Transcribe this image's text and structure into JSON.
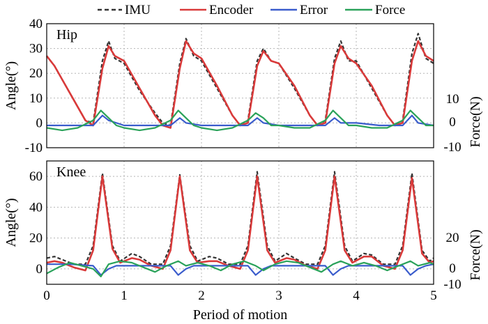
{
  "chart_data": {
    "type": "line",
    "legend": {
      "placement": "top",
      "entries": [
        {
          "name": "IMU",
          "color": "#333333",
          "style": "dashed"
        },
        {
          "name": "Encoder",
          "color": "#d93a3a",
          "style": "solid"
        },
        {
          "name": "Error",
          "color": "#3a5ccc",
          "style": "solid"
        },
        {
          "name": "Force",
          "color": "#2aa25a",
          "style": "solid"
        }
      ]
    },
    "xlabel": "Period of motion",
    "xlim": [
      0,
      5
    ],
    "xticks": [
      "0",
      "1",
      "2",
      "3",
      "4",
      "5"
    ],
    "grid": true,
    "panels": [
      {
        "title": "Hip",
        "ylabel": "Angle(°)",
        "ylim": [
          -10,
          40
        ],
        "yticks": [
          "-10",
          "0",
          "10",
          "20",
          "30",
          "40"
        ],
        "ylabel_right": "Force(N)",
        "yticks_right": [
          "10",
          "0",
          "-10"
        ],
        "series": [
          {
            "name": "IMU",
            "x": [
              0,
              0.1,
              0.3,
              0.5,
              0.6,
              0.72,
              0.8,
              0.88,
              1.0,
              1.2,
              1.4,
              1.5,
              1.6,
              1.72,
              1.8,
              1.9,
              2.0,
              2.2,
              2.4,
              2.5,
              2.6,
              2.72,
              2.8,
              2.9,
              3.0,
              3.2,
              3.4,
              3.5,
              3.6,
              3.72,
              3.8,
              3.9,
              4.0,
              4.2,
              4.4,
              4.5,
              4.6,
              4.72,
              4.8,
              4.9,
              5.0
            ],
            "y": [
              27,
              23,
              12,
              1,
              0,
              25,
              33,
              26,
              24,
              13,
              4,
              0,
              -1,
              24,
              34,
              27,
              25,
              14,
              3,
              -1,
              1,
              25,
              30,
              25,
              24,
              14,
              3,
              -1,
              1,
              26,
              33,
              25,
              25,
              14,
              3,
              -1,
              1,
              28,
              36,
              26,
              24
            ]
          },
          {
            "name": "Encoder",
            "x": [
              0,
              0.1,
              0.3,
              0.5,
              0.6,
              0.72,
              0.8,
              0.88,
              1.0,
              1.2,
              1.4,
              1.5,
              1.6,
              1.72,
              1.8,
              1.9,
              2.0,
              2.2,
              2.4,
              2.5,
              2.6,
              2.72,
              2.8,
              2.9,
              3.0,
              3.2,
              3.4,
              3.5,
              3.6,
              3.72,
              3.8,
              3.9,
              4.0,
              4.2,
              4.4,
              4.5,
              4.6,
              4.72,
              4.8,
              4.9,
              5.0
            ],
            "y": [
              27,
              23,
              12,
              1,
              -1,
              22,
              31,
              27,
              25,
              14,
              3,
              -1,
              -2,
              22,
              33,
              28,
              26,
              15,
              3,
              -1,
              0,
              23,
              29,
              25,
              24,
              15,
              3,
              -1,
              0,
              24,
              31,
              26,
              24,
              15,
              3,
              -1,
              0,
              25,
              33,
              27,
              25
            ]
          },
          {
            "name": "Error",
            "x": [
              0,
              0.3,
              0.6,
              0.72,
              0.8,
              1.0,
              1.3,
              1.6,
              1.72,
              1.8,
              2.0,
              2.3,
              2.6,
              2.72,
              2.8,
              3.0,
              3.3,
              3.6,
              3.72,
              3.8,
              4.0,
              4.3,
              4.6,
              4.72,
              4.8,
              5.0
            ],
            "y": [
              -1,
              -1,
              -1,
              3,
              1,
              -1,
              -1,
              -1,
              2,
              0,
              -1,
              -1,
              -1,
              2,
              0,
              -1,
              -1,
              -1,
              2,
              0,
              0,
              -1,
              -1,
              3,
              0,
              -1
            ]
          },
          {
            "name": "Force",
            "x": [
              0,
              0.2,
              0.4,
              0.6,
              0.7,
              0.8,
              0.9,
              1.0,
              1.2,
              1.4,
              1.6,
              1.7,
              1.8,
              1.9,
              2.0,
              2.2,
              2.4,
              2.6,
              2.7,
              2.8,
              2.9,
              3.0,
              3.2,
              3.4,
              3.6,
              3.7,
              3.8,
              3.9,
              4.0,
              4.2,
              4.4,
              4.6,
              4.7,
              4.8,
              4.9,
              5.0
            ],
            "y": [
              -2,
              -3,
              -2,
              1,
              5,
              2,
              -1,
              -2,
              -3,
              -2,
              1,
              5,
              2,
              -1,
              -2,
              -3,
              -2,
              1,
              4,
              2,
              -1,
              -1,
              -2,
              -2,
              1,
              5,
              2,
              -1,
              -1,
              -2,
              -2,
              1,
              5,
              2,
              -1,
              -1
            ]
          }
        ]
      },
      {
        "title": "Knee",
        "ylabel": "Angle(°)",
        "ylim": [
          -10,
          70
        ],
        "yticks": [
          "0",
          "20",
          "40",
          "60"
        ],
        "ylabel_right": "Force(N)",
        "yticks_right": [
          "20",
          "0",
          "-10"
        ],
        "series": [
          {
            "name": "IMU",
            "x": [
              0,
              0.1,
              0.2,
              0.35,
              0.5,
              0.6,
              0.72,
              0.85,
              0.95,
              1.1,
              1.2,
              1.35,
              1.5,
              1.6,
              1.72,
              1.85,
              1.95,
              2.1,
              2.2,
              2.35,
              2.5,
              2.6,
              2.72,
              2.85,
              2.95,
              3.1,
              3.2,
              3.35,
              3.5,
              3.6,
              3.72,
              3.85,
              3.95,
              4.1,
              4.2,
              4.35,
              4.5,
              4.6,
              4.72,
              4.85,
              4.95,
              5.0
            ],
            "y": [
              7,
              8,
              6,
              3,
              3,
              15,
              62,
              15,
              5,
              10,
              8,
              3,
              3,
              15,
              61,
              15,
              5,
              8,
              7,
              3,
              3,
              15,
              63,
              15,
              5,
              10,
              7,
              3,
              3,
              15,
              63,
              15,
              5,
              10,
              9,
              3,
              3,
              15,
              62,
              12,
              5,
              7
            ]
          },
          {
            "name": "Encoder",
            "x": [
              0,
              0.1,
              0.2,
              0.35,
              0.5,
              0.6,
              0.72,
              0.85,
              0.95,
              1.1,
              1.2,
              1.35,
              1.5,
              1.6,
              1.72,
              1.85,
              1.95,
              2.1,
              2.2,
              2.35,
              2.5,
              2.6,
              2.72,
              2.85,
              2.95,
              3.1,
              3.2,
              3.35,
              3.5,
              3.6,
              3.72,
              3.85,
              3.95,
              4.1,
              4.2,
              4.35,
              4.5,
              4.6,
              4.72,
              4.85,
              4.95,
              5.0
            ],
            "y": [
              4,
              5,
              4,
              1,
              -1,
              12,
              60,
              13,
              4,
              7,
              6,
              2,
              0,
              12,
              60,
              12,
              4,
              5,
              5,
              2,
              0,
              12,
              60,
              12,
              4,
              7,
              6,
              2,
              0,
              12,
              60,
              12,
              4,
              8,
              8,
              2,
              0,
              12,
              59,
              10,
              4,
              5
            ]
          },
          {
            "name": "Error",
            "x": [
              0,
              0.3,
              0.6,
              0.7,
              0.8,
              0.9,
              1.2,
              1.6,
              1.7,
              1.8,
              1.9,
              2.2,
              2.6,
              2.7,
              2.8,
              2.9,
              3.2,
              3.6,
              3.7,
              3.8,
              3.9,
              4.2,
              4.6,
              4.7,
              4.8,
              4.9,
              5.0
            ],
            "y": [
              3,
              3,
              2,
              -4,
              0,
              2,
              2,
              2,
              -4,
              0,
              2,
              2,
              2,
              -4,
              0,
              2,
              2,
              2,
              -4,
              0,
              2,
              2,
              2,
              -4,
              0,
              2,
              3
            ]
          },
          {
            "name": "Force",
            "x": [
              0,
              0.15,
              0.3,
              0.45,
              0.6,
              0.7,
              0.8,
              0.95,
              1.1,
              1.25,
              1.4,
              1.55,
              1.7,
              1.8,
              1.95,
              2.1,
              2.25,
              2.4,
              2.55,
              2.7,
              2.8,
              2.95,
              3.1,
              3.25,
              3.4,
              3.55,
              3.7,
              3.8,
              3.95,
              4.1,
              4.25,
              4.4,
              4.55,
              4.7,
              4.8,
              4.95,
              5.0
            ],
            "y": [
              -3,
              1,
              4,
              2,
              0,
              -5,
              3,
              5,
              4,
              1,
              -2,
              2,
              5,
              2,
              4,
              2,
              -1,
              3,
              5,
              2,
              -1,
              3,
              5,
              4,
              1,
              -2,
              3,
              5,
              2,
              4,
              2,
              -1,
              2,
              5,
              2,
              4,
              3
            ]
          }
        ]
      }
    ]
  }
}
